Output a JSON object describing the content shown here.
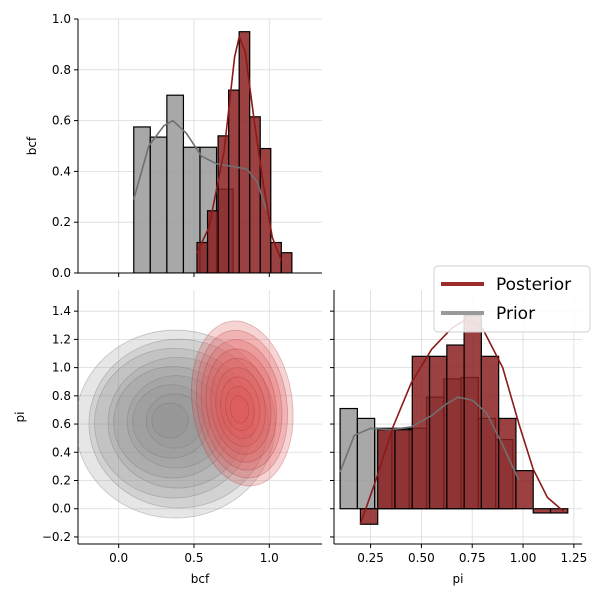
{
  "chart_data": {
    "type": "pairplot",
    "variables": [
      "bcf",
      "pi"
    ],
    "colors": {
      "posterior": "#8b2020",
      "prior": "#8c8c8c"
    },
    "legend": {
      "position": "right",
      "entries": [
        {
          "label": "Posterior",
          "color": "#9e2a2a"
        },
        {
          "label": "Prior",
          "color": "#999999"
        }
      ]
    },
    "panels": {
      "bcf_hist": {
        "xlabel": "",
        "ylabel": "bcf",
        "xlim": [
          -0.27,
          1.35
        ],
        "ylim": [
          0,
          1.0
        ],
        "yticks": [
          "0.0",
          "0.2",
          "0.4",
          "0.6",
          "0.8",
          "1.0"
        ],
        "grid": true,
        "prior_bins": [
          {
            "x0": 0.1,
            "x1": 0.21,
            "h": 0.575
          },
          {
            "x0": 0.21,
            "x1": 0.32,
            "h": 0.535
          },
          {
            "x0": 0.32,
            "x1": 0.43,
            "h": 0.7
          },
          {
            "x0": 0.43,
            "x1": 0.54,
            "h": 0.495
          },
          {
            "x0": 0.54,
            "x1": 0.65,
            "h": 0.495
          },
          {
            "x0": 0.65,
            "x1": 0.76,
            "h": 0.33
          }
        ],
        "prior_kde": [
          [
            0.1,
            0.29
          ],
          [
            0.2,
            0.5
          ],
          [
            0.3,
            0.58
          ],
          [
            0.36,
            0.6
          ],
          [
            0.45,
            0.55
          ],
          [
            0.55,
            0.46
          ],
          [
            0.65,
            0.43
          ],
          [
            0.75,
            0.42
          ],
          [
            0.85,
            0.41
          ],
          [
            0.92,
            0.36
          ],
          [
            0.98,
            0.25
          ]
        ],
        "posterior_bins": [
          {
            "x0": 0.52,
            "x1": 0.59,
            "h": 0.12
          },
          {
            "x0": 0.59,
            "x1": 0.66,
            "h": 0.245
          },
          {
            "x0": 0.66,
            "x1": 0.73,
            "h": 0.54
          },
          {
            "x0": 0.73,
            "x1": 0.8,
            "h": 0.72
          },
          {
            "x0": 0.8,
            "x1": 0.87,
            "h": 0.95
          },
          {
            "x0": 0.87,
            "x1": 0.94,
            "h": 0.615
          },
          {
            "x0": 0.94,
            "x1": 1.01,
            "h": 0.49
          },
          {
            "x0": 1.01,
            "x1": 1.08,
            "h": 0.12
          },
          {
            "x0": 1.08,
            "x1": 1.15,
            "h": 0.08
          }
        ],
        "posterior_kde": [
          [
            0.52,
            0.08
          ],
          [
            0.6,
            0.18
          ],
          [
            0.7,
            0.48
          ],
          [
            0.77,
            0.85
          ],
          [
            0.8,
            0.93
          ],
          [
            0.84,
            0.87
          ],
          [
            0.9,
            0.6
          ],
          [
            0.96,
            0.35
          ],
          [
            1.02,
            0.14
          ],
          [
            1.08,
            0.05
          ]
        ]
      },
      "joint": {
        "xlabel": "bcf",
        "ylabel": "pi",
        "xlim": [
          -0.27,
          1.35
        ],
        "ylim": [
          -0.25,
          1.55
        ],
        "xticks": [
          "0.0",
          "0.5",
          "1.0"
        ],
        "yticks": [
          "−0.2",
          "0.0",
          "0.2",
          "0.4",
          "0.6",
          "0.8",
          "1.0",
          "1.2",
          "1.4"
        ],
        "grid": true,
        "prior_kde_center": [
          0.35,
          0.6
        ],
        "posterior_kde_center": [
          0.8,
          0.7
        ]
      },
      "pi_hist": {
        "xlabel": "pi",
        "ylabel": "",
        "xlim": [
          0.07,
          1.29
        ],
        "ylim": [
          0,
          1.55
        ],
        "xticks": [
          "0.25",
          "0.50",
          "0.75",
          "1.00",
          "1.25"
        ],
        "grid": true,
        "prior_bins": [
          {
            "x0": 0.1,
            "x1": 0.185,
            "h": 0.71
          },
          {
            "x0": 0.185,
            "x1": 0.27,
            "h": 0.64
          },
          {
            "x0": 0.27,
            "x1": 0.355,
            "h": 0.57
          },
          {
            "x0": 0.355,
            "x1": 0.44,
            "h": 0.57
          },
          {
            "x0": 0.44,
            "x1": 0.525,
            "h": 0.57
          },
          {
            "x0": 0.525,
            "x1": 0.61,
            "h": 0.79
          },
          {
            "x0": 0.61,
            "x1": 0.695,
            "h": 0.92
          },
          {
            "x0": 0.695,
            "x1": 0.78,
            "h": 0.93
          },
          {
            "x0": 0.78,
            "x1": 0.865,
            "h": 0.64
          },
          {
            "x0": 0.865,
            "x1": 0.95,
            "h": 0.49
          }
        ],
        "prior_kde": [
          [
            0.1,
            0.26
          ],
          [
            0.17,
            0.52
          ],
          [
            0.25,
            0.57
          ],
          [
            0.35,
            0.56
          ],
          [
            0.45,
            0.58
          ],
          [
            0.55,
            0.66
          ],
          [
            0.62,
            0.74
          ],
          [
            0.68,
            0.79
          ],
          [
            0.75,
            0.77
          ],
          [
            0.82,
            0.68
          ],
          [
            0.9,
            0.45
          ],
          [
            0.98,
            0.2
          ]
        ],
        "posterior_bins": [
          {
            "x0": 0.2,
            "x1": 0.285,
            "h": -0.11
          },
          {
            "x0": 0.285,
            "x1": 0.37,
            "h": 0.56
          },
          {
            "x0": 0.37,
            "x1": 0.455,
            "h": 0.56
          },
          {
            "x0": 0.455,
            "x1": 0.54,
            "h": 1.08
          },
          {
            "x0": 0.54,
            "x1": 0.625,
            "h": 1.08
          },
          {
            "x0": 0.625,
            "x1": 0.71,
            "h": 1.16
          },
          {
            "x0": 0.71,
            "x1": 0.795,
            "h": 1.37
          },
          {
            "x0": 0.795,
            "x1": 0.88,
            "h": 1.08
          },
          {
            "x0": 0.88,
            "x1": 0.965,
            "h": 0.64
          },
          {
            "x0": 0.965,
            "x1": 1.05,
            "h": 0.27
          },
          {
            "x0": 1.05,
            "x1": 1.135,
            "h": -0.03
          },
          {
            "x0": 1.135,
            "x1": 1.22,
            "h": -0.03
          }
        ],
        "posterior_kde": [
          [
            0.2,
            -0.11
          ],
          [
            0.28,
            0.22
          ],
          [
            0.36,
            0.58
          ],
          [
            0.45,
            0.89
          ],
          [
            0.55,
            1.13
          ],
          [
            0.65,
            1.28
          ],
          [
            0.72,
            1.34
          ],
          [
            0.8,
            1.28
          ],
          [
            0.9,
            1.0
          ],
          [
            0.98,
            0.6
          ],
          [
            1.05,
            0.28
          ],
          [
            1.12,
            0.08
          ],
          [
            1.2,
            -0.02
          ]
        ]
      }
    }
  }
}
